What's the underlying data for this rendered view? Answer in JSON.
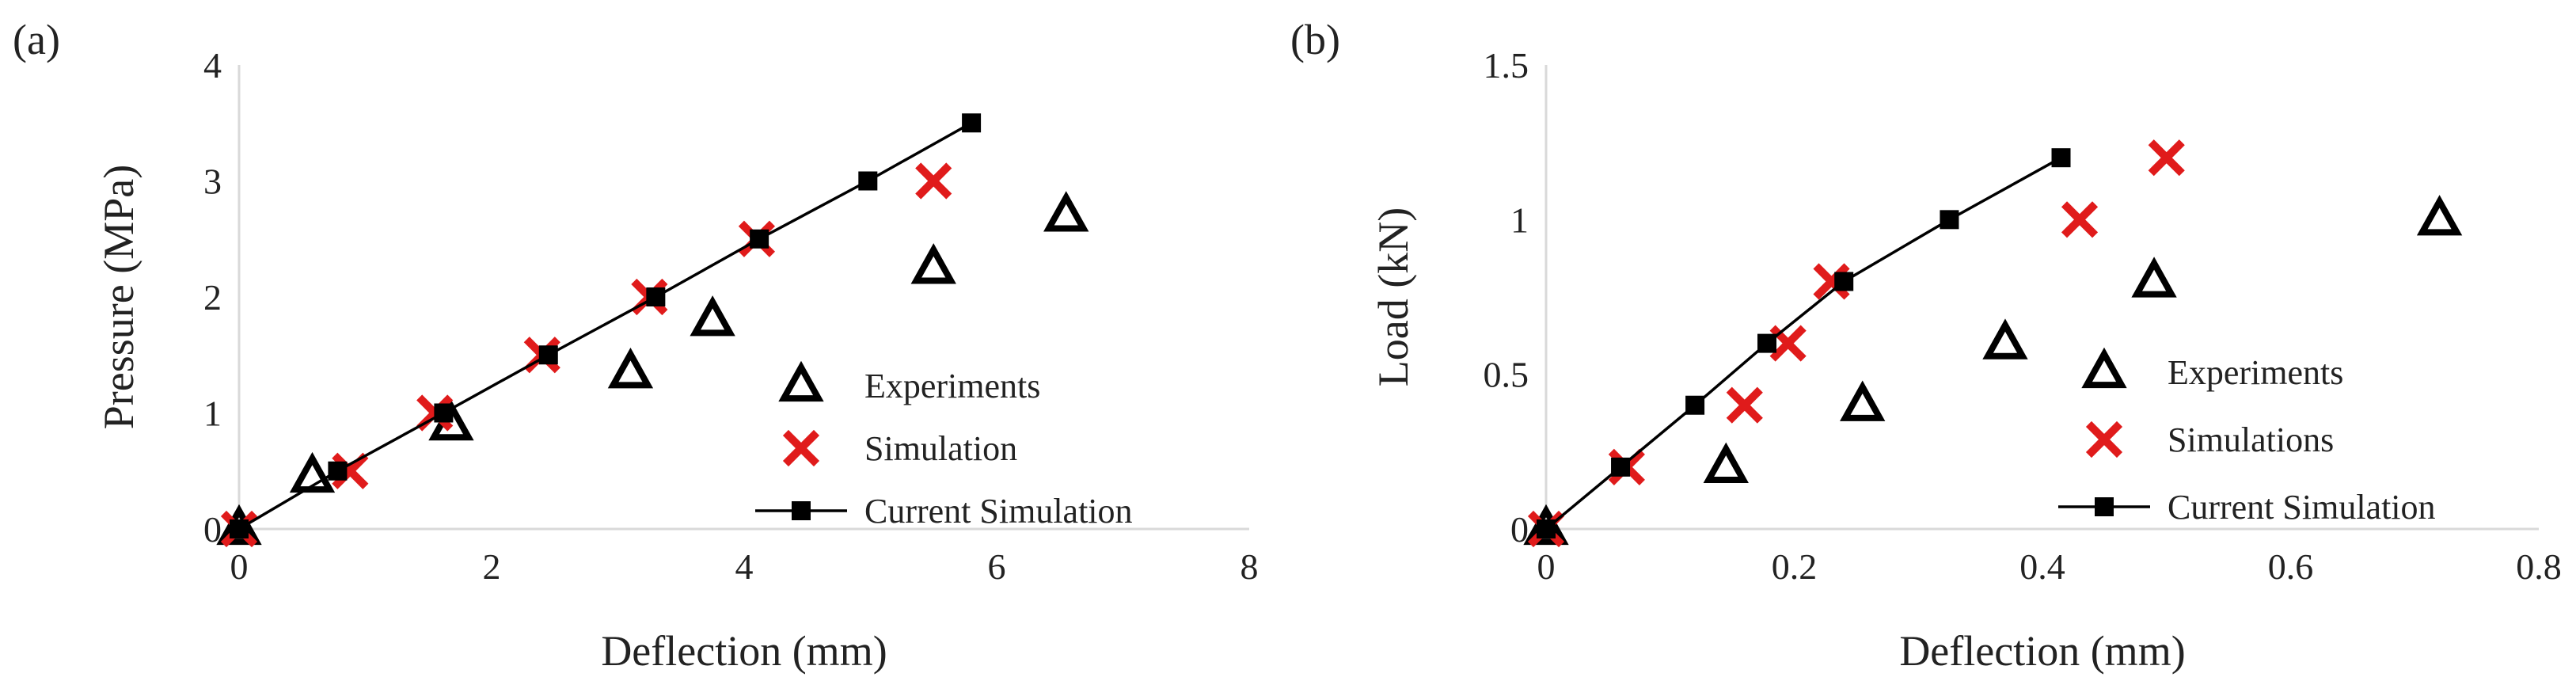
{
  "chart_data": [
    {
      "panel_label": "(a)",
      "type": "scatter",
      "xlabel": "Deflection (mm)",
      "ylabel": "Pressure (MPa)",
      "xlim": [
        0,
        8
      ],
      "ylim": [
        0,
        4
      ],
      "xticks": [
        0,
        2,
        4,
        6,
        8
      ],
      "yticks": [
        0,
        1,
        2,
        3,
        4
      ],
      "grid": false,
      "legend_position": "lower-right",
      "series": [
        {
          "name": "Experiments",
          "marker": "open-triangle",
          "color": "#000000",
          "x": [
            0.0,
            0.58,
            1.68,
            3.1,
            3.75,
            5.5,
            6.55
          ],
          "y": [
            0.0,
            0.45,
            0.9,
            1.35,
            1.8,
            2.25,
            2.7
          ]
        },
        {
          "name": "Simulation",
          "marker": "x",
          "color": "#e01b1b",
          "x": [
            0.0,
            0.88,
            1.55,
            2.4,
            3.25,
            4.1,
            5.5
          ],
          "y": [
            0.0,
            0.5,
            1.0,
            1.5,
            2.0,
            2.5,
            3.0
          ]
        },
        {
          "name": "Current Simulation",
          "marker": "filled-square-line",
          "color": "#000000",
          "x": [
            0.0,
            0.78,
            1.62,
            2.45,
            3.3,
            4.12,
            4.98,
            5.8
          ],
          "y": [
            0.0,
            0.5,
            1.0,
            1.5,
            2.0,
            2.5,
            3.0,
            3.5
          ]
        }
      ]
    },
    {
      "panel_label": "(b)",
      "type": "scatter",
      "xlabel": "Deflection (mm)",
      "ylabel": "Load (kN)",
      "xlim": [
        0,
        0.8
      ],
      "ylim": [
        0,
        1.5
      ],
      "xticks": [
        0,
        0.2,
        0.4,
        0.6,
        0.8
      ],
      "xtick_labels": [
        "0",
        "0.2",
        "0.4",
        "0.6",
        "0.8"
      ],
      "yticks": [
        0,
        0.5,
        1,
        1.5
      ],
      "ytick_labels": [
        "0",
        "0.5",
        "1",
        "1.5"
      ],
      "grid": false,
      "legend_position": "lower-right",
      "series": [
        {
          "name": "Experiments",
          "marker": "open-triangle",
          "color": "#000000",
          "x": [
            0.0,
            0.145,
            0.255,
            0.37,
            0.49,
            0.72
          ],
          "y": [
            0.0,
            0.2,
            0.4,
            0.6,
            0.8,
            1.0
          ]
        },
        {
          "name": "Simulations",
          "marker": "x",
          "color": "#e01b1b",
          "x": [
            0.0,
            0.065,
            0.16,
            0.195,
            0.23,
            0.43,
            0.5
          ],
          "y": [
            0.0,
            0.2,
            0.4,
            0.6,
            0.8,
            1.0,
            1.2
          ]
        },
        {
          "name": "Current Simulation",
          "marker": "filled-square-line",
          "color": "#000000",
          "x": [
            0.0,
            0.06,
            0.12,
            0.178,
            0.24,
            0.325,
            0.415
          ],
          "y": [
            0.0,
            0.2,
            0.4,
            0.6,
            0.8,
            1.0,
            1.2
          ]
        }
      ]
    }
  ]
}
